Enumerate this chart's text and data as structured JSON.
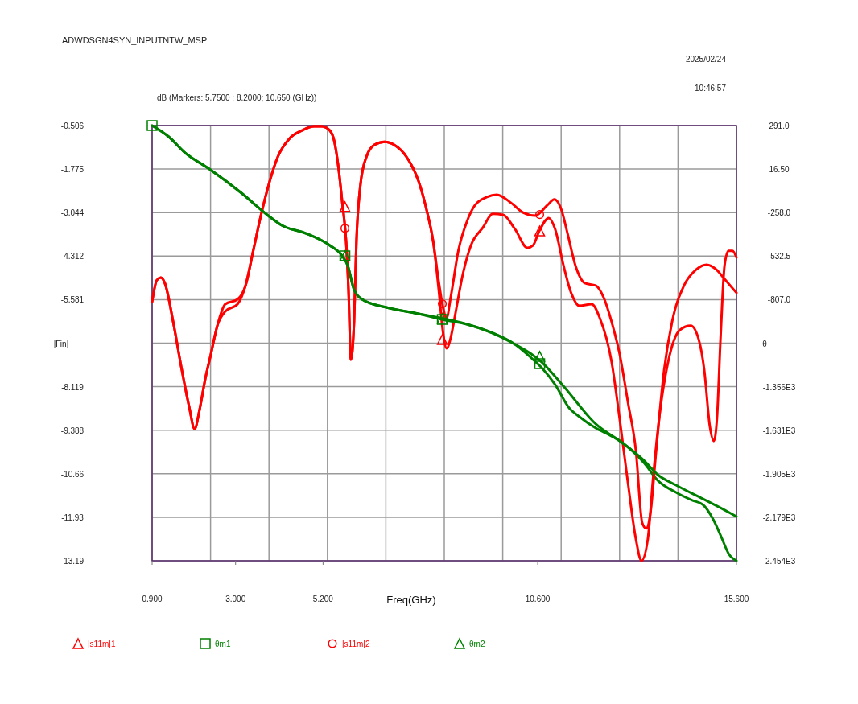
{
  "chart_data": {
    "type": "line",
    "title": "ADWDSGN4SYN_INPUTNTW_MSP",
    "subtitle": "dB (Markers: 5.7500 ; 8.2000; 10.650 (GHz))",
    "annotations": [
      "2025/02/24",
      "10:46:57"
    ],
    "xlabel": "Freq(GHz)",
    "ylabel": "|Γin|",
    "y2label": "θ",
    "xlim": [
      0.9,
      15.6
    ],
    "xticks": [
      {
        "value": 0.9,
        "label": "0.900"
      },
      {
        "value": 3,
        "label": "3.000"
      },
      {
        "value": 5.2,
        "label": "5.200"
      },
      {
        "value": 10.6,
        "label": "10.600"
      },
      {
        "value": 15.6,
        "label": "15.600"
      }
    ],
    "ylim": [
      -13.19,
      -0.506
    ],
    "yticks": [
      -0.506,
      -1.775,
      -3.044,
      -4.312,
      -5.581,
      -8.119,
      -9.388,
      -10.66,
      -11.93,
      -13.19
    ],
    "y2lim": [
      -2454,
      291
    ],
    "y2ticks": [
      {
        "value": 291,
        "label": "291.0"
      },
      {
        "value": 16.5,
        "label": "16.50"
      },
      {
        "value": -258,
        "label": "-258.0"
      },
      {
        "value": -532.5,
        "label": "-532.5"
      },
      {
        "value": -807,
        "label": "-807.0"
      },
      {
        "value": -1356,
        "label": "-1.356E3"
      },
      {
        "value": -1631,
        "label": "-1.631E3"
      },
      {
        "value": -1905,
        "label": "-1.905E3"
      },
      {
        "value": -2179,
        "label": "-2.179E3"
      },
      {
        "value": -2454,
        "label": "-2.454E3"
      }
    ],
    "grid": true,
    "legend": "bottom",
    "series": [
      {
        "color": "#ff0000",
        "x": [
          0.9,
          1.02,
          1.12,
          1.22,
          1.43,
          1.63,
          1.83,
          1.97,
          2.09,
          2.24,
          2.38,
          2.54,
          2.74,
          3.05,
          3.25,
          3.45,
          3.65,
          3.86,
          4.06,
          4.36,
          4.67,
          4.97,
          5.17,
          5.37,
          5.48,
          5.58,
          5.68,
          5.78,
          5.84,
          5.9,
          5.98,
          6.04,
          6.14,
          6.29,
          6.49,
          6.75,
          6.99,
          7.3,
          7.6,
          7.8,
          7.97,
          8.11,
          8.21,
          8.31,
          8.41,
          8.51,
          8.72,
          8.92,
          9.22,
          9.47,
          9.73,
          10.03,
          10.34,
          10.48,
          10.64,
          10.88,
          11.04,
          11.25,
          11.45,
          11.65,
          11.96,
          12.16,
          12.46,
          12.66,
          12.87,
          13.07,
          13.21,
          13.37,
          13.51,
          13.68,
          13.88,
          14.18,
          14.45,
          14.65,
          14.79,
          14.93,
          15.03,
          15.11,
          15.2,
          15.3,
          15.4,
          15.5,
          15.6
        ],
        "values": [
          -5.64,
          -5.01,
          -4.94,
          -5.1,
          -6.23,
          -7.52,
          -8.69,
          -9.35,
          -8.81,
          -7.87,
          -7.16,
          -6.34,
          -5.71,
          -5.57,
          -5.17,
          -4.12,
          -3.06,
          -2.12,
          -1.42,
          -0.88,
          -0.65,
          -0.53,
          -0.53,
          -0.65,
          -0.95,
          -1.66,
          -2.71,
          -3.88,
          -5.29,
          -7.33,
          -6.23,
          -3.88,
          -2.24,
          -1.42,
          -1.07,
          -0.98,
          -1.07,
          -1.42,
          -2.12,
          -2.94,
          -3.88,
          -5.29,
          -6.46,
          -7.0,
          -6.7,
          -6.11,
          -4.82,
          -4.0,
          -3.48,
          -3.08,
          -3.11,
          -3.53,
          -4.07,
          -4.0,
          -3.58,
          -3.2,
          -3.53,
          -4.59,
          -5.41,
          -5.76,
          -5.71,
          -6.11,
          -7.4,
          -9.04,
          -10.92,
          -12.56,
          -13.19,
          -12.56,
          -10.68,
          -8.81,
          -7.4,
          -6.46,
          -6.34,
          -6.74,
          -7.63,
          -9.27,
          -9.7,
          -9.04,
          -6.7,
          -4.59,
          -4.16,
          -4.16,
          -4.35
        ]
      },
      {
        "color": "#008000",
        "axis": "y2",
        "x": [
          0.9,
          1.32,
          1.73,
          2.34,
          3.15,
          3.82,
          4.16,
          4.77,
          5.37,
          5.68,
          5.82,
          5.98,
          6.18,
          6.79,
          7.6,
          8.19,
          8.82,
          9.42,
          10.03,
          10.44,
          10.7,
          11.04,
          11.39,
          11.65,
          12.06,
          12.46,
          12.72,
          13.27,
          13.62,
          14.08,
          14.49,
          14.75,
          15.03,
          15.24,
          15.4,
          15.6
        ],
        "values": [
          291,
          220,
          119,
          17,
          -135,
          -277,
          -338,
          -389,
          -465,
          -531,
          -592,
          -744,
          -805,
          -856,
          -896,
          -932,
          -962,
          -1013,
          -1089,
          -1175,
          -1236,
          -1343,
          -1490,
          -1546,
          -1617,
          -1668,
          -1708,
          -1835,
          -1947,
          -2023,
          -2073,
          -2099,
          -2200,
          -2317,
          -2408,
          -2454
        ]
      },
      {
        "color": "#ff0000",
        "x": [
          0.9,
          1.02,
          1.12,
          1.22,
          1.43,
          1.63,
          1.83,
          1.97,
          2.09,
          2.24,
          2.38,
          2.54,
          2.74,
          3.05,
          3.25,
          3.45,
          3.65,
          3.86,
          4.06,
          4.36,
          4.67,
          4.97,
          5.17,
          5.37,
          5.48,
          5.58,
          5.68,
          5.78,
          5.84,
          5.9,
          5.98,
          6.04,
          6.14,
          6.29,
          6.49,
          6.75,
          6.99,
          7.3,
          7.6,
          7.8,
          7.97,
          8.11,
          8.21,
          8.31,
          8.41,
          8.61,
          8.82,
          9.02,
          9.32,
          9.57,
          9.93,
          10.23,
          10.54,
          10.84,
          11.02,
          11.19,
          11.35,
          11.55,
          11.79,
          12.06,
          12.26,
          12.46,
          12.66,
          12.87,
          13.07,
          13.23,
          13.33,
          13.43,
          13.58,
          13.78,
          13.98,
          14.28,
          14.59,
          14.85,
          15.09,
          15.3,
          15.6
        ],
        "values": [
          -5.64,
          -5.01,
          -4.94,
          -5.1,
          -6.23,
          -7.52,
          -8.69,
          -9.35,
          -8.81,
          -7.87,
          -7.16,
          -6.34,
          -5.92,
          -5.71,
          -5.17,
          -4.12,
          -3.06,
          -2.12,
          -1.42,
          -0.88,
          -0.65,
          -0.53,
          -0.53,
          -0.65,
          -0.95,
          -1.66,
          -2.71,
          -3.88,
          -5.29,
          -7.33,
          -6.23,
          -3.88,
          -2.24,
          -1.42,
          -1.07,
          -0.98,
          -1.07,
          -1.42,
          -2.12,
          -2.94,
          -3.88,
          -5.05,
          -5.76,
          -6.11,
          -5.52,
          -4.12,
          -3.3,
          -2.83,
          -2.59,
          -2.52,
          -2.76,
          -3.04,
          -3.13,
          -2.83,
          -2.66,
          -2.94,
          -3.65,
          -4.59,
          -5.1,
          -5.17,
          -5.52,
          -6.23,
          -7.16,
          -8.57,
          -9.98,
          -12.09,
          -12.25,
          -11.85,
          -9.98,
          -7.63,
          -6.23,
          -5.17,
          -4.7,
          -4.56,
          -4.7,
          -4.98,
          -5.38
        ]
      },
      {
        "color": "#008000",
        "axis": "y2",
        "x": [
          0.9,
          1.32,
          1.73,
          2.34,
          3.15,
          3.82,
          4.16,
          4.77,
          5.37,
          5.68,
          5.82,
          5.98,
          6.18,
          6.79,
          7.6,
          8.19,
          8.82,
          9.42,
          10.03,
          10.44,
          10.7,
          11.25,
          12.06,
          12.72,
          13.27,
          13.62,
          14.08,
          14.75,
          15.3,
          15.6
        ],
        "values": [
          291,
          220,
          119,
          17,
          -135,
          -277,
          -338,
          -389,
          -465,
          -531,
          -592,
          -744,
          -805,
          -856,
          -896,
          -925,
          -962,
          -1013,
          -1089,
          -1150,
          -1201,
          -1353,
          -1591,
          -1708,
          -1820,
          -1911,
          -1977,
          -2063,
          -2134,
          -2175
        ]
      },
      {
        "type": "scatter",
        "name": "|s11m|1",
        "color": "#ff0000",
        "marker": "triangle",
        "x": [
          5.75,
          8.2,
          10.65
        ],
        "values": [
          -2.87,
          -6.74,
          -3.58
        ]
      },
      {
        "type": "scatter",
        "name": "θm1",
        "color": "#008000",
        "marker": "square",
        "axis": "y2",
        "x": [
          0.9,
          5.75,
          8.2,
          10.65
        ],
        "values": [
          291,
          -531,
          -932,
          -1211
        ]
      },
      {
        "type": "scatter",
        "name": "|s11m|2",
        "color": "#ff0000",
        "marker": "circle",
        "x": [
          5.75,
          8.2,
          10.65
        ],
        "values": [
          -3.5,
          -5.7,
          -3.1
        ]
      },
      {
        "type": "scatter",
        "name": "θm2",
        "color": "#008000",
        "marker": "triangle",
        "axis": "y2",
        "x": [
          5.75,
          8.2,
          10.65
        ],
        "values": [
          -531,
          -925,
          -1165
        ]
      }
    ]
  }
}
